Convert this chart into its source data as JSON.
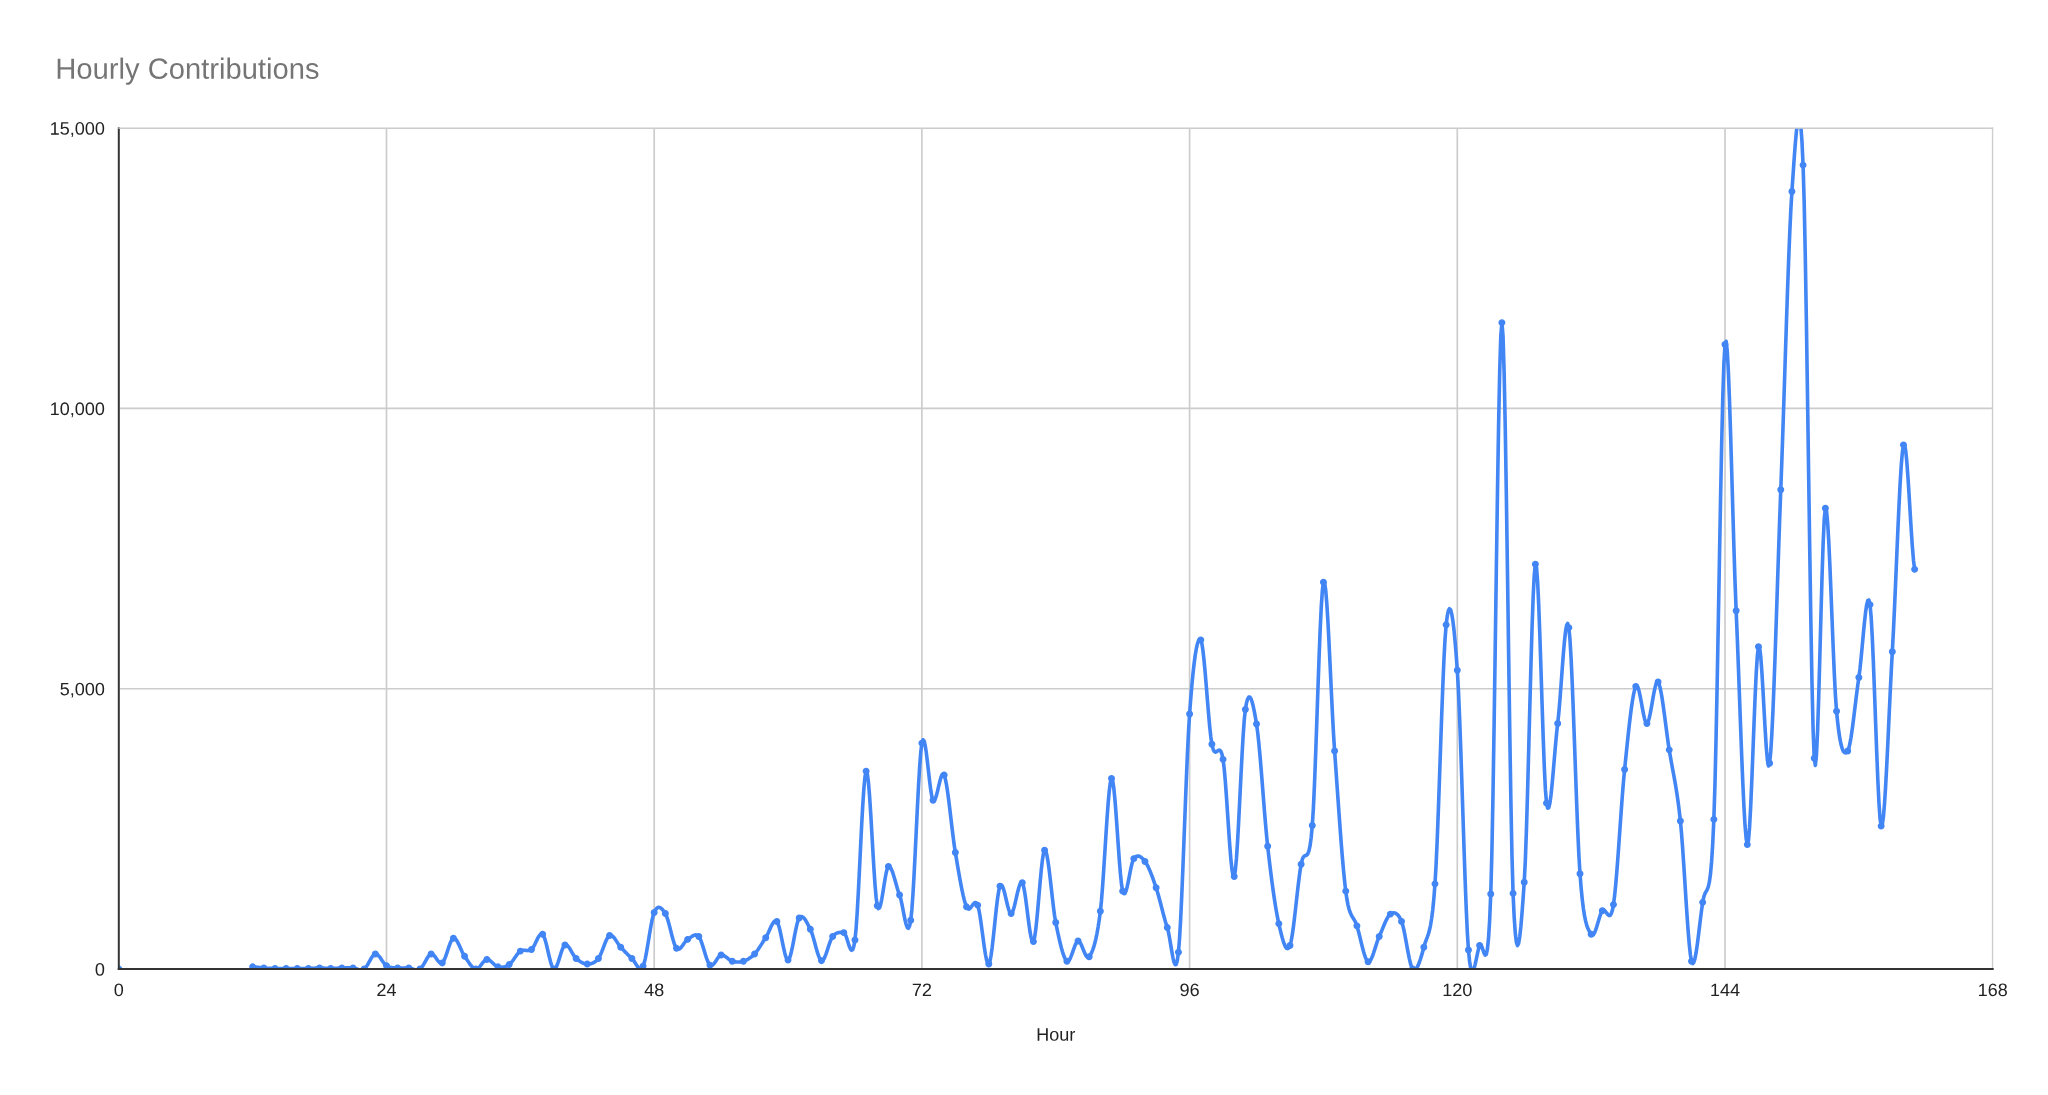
{
  "chart_data": {
    "type": "line",
    "title": "Hourly Contributions",
    "xlabel": "Hour",
    "x": [
      0,
      1,
      2,
      3,
      4,
      5,
      6,
      7,
      8,
      9,
      10,
      11,
      12,
      13,
      14,
      15,
      16,
      17,
      18,
      19,
      20,
      21,
      22,
      23,
      24,
      25,
      26,
      27,
      28,
      29,
      30,
      31,
      32,
      33,
      34,
      35,
      36,
      37,
      38,
      39,
      40,
      41,
      42,
      43,
      44,
      45,
      46,
      47,
      48,
      49,
      50,
      51,
      52,
      53,
      54,
      55,
      56,
      57,
      58,
      59,
      60,
      61,
      62,
      63,
      64,
      65,
      66,
      67,
      68,
      69,
      70,
      71,
      72,
      73,
      74,
      75,
      76,
      77,
      78,
      79,
      80,
      81,
      82,
      83,
      84,
      85,
      86,
      87,
      88,
      89,
      90,
      91,
      92,
      93,
      94,
      95,
      96,
      97,
      98,
      99,
      100,
      101,
      102,
      103,
      104,
      105,
      106,
      107,
      108,
      109,
      110,
      111,
      112,
      113,
      114,
      115,
      116,
      117,
      118,
      119,
      120,
      121,
      122,
      123,
      124,
      125,
      126,
      127,
      128,
      129,
      130,
      131,
      132,
      133,
      134,
      135,
      136,
      137,
      138,
      139,
      140,
      141,
      142,
      143,
      144,
      145,
      146,
      147,
      148,
      149,
      150,
      151,
      152,
      153,
      154,
      155,
      156,
      157,
      158,
      159,
      160,
      161
    ],
    "series": [
      {
        "color": "#4285f4",
        "values": [
          0,
          null,
          null,
          null,
          null,
          null,
          null,
          null,
          null,
          null,
          null,
          null,
          40,
          20,
          10,
          10,
          10,
          10,
          20,
          10,
          20,
          20,
          0,
          270,
          60,
          20,
          20,
          0,
          270,
          110,
          550,
          230,
          0,
          170,
          40,
          80,
          320,
          350,
          620,
          0,
          430,
          190,
          90,
          190,
          600,
          390,
          190,
          50,
          1010,
          990,
          370,
          530,
          580,
          70,
          250,
          140,
          140,
          270,
          560,
          850,
          160,
          910,
          710,
          150,
          580,
          650,
          520,
          3530,
          1130,
          1830,
          1320,
          870,
          4030,
          3010,
          3460,
          2080,
          1110,
          1140,
          90,
          1480,
          990,
          1540,
          490,
          2120,
          830,
          140,
          500,
          220,
          1030,
          3400,
          1390,
          1970,
          1920,
          1450,
          740,
          300,
          4550,
          5870,
          4010,
          3740,
          1650,
          4630,
          4370,
          2190,
          810,
          420,
          1870,
          2560,
          6900,
          3890,
          1390,
          770,
          130,
          580,
          980,
          850,
          0,
          390,
          1520,
          6140,
          5330,
          340,
          420,
          1340,
          11530,
          1350,
          1550,
          7220,
          2960,
          4380,
          6090,
          1700,
          620,
          1040,
          1150,
          3560,
          5040,
          4380,
          5120,
          3910,
          2640,
          140,
          1190,
          2670,
          11140,
          6390,
          2220,
          5750,
          3670,
          8550,
          13870,
          14340,
          3760,
          8220,
          4600,
          3890,
          5200,
          6500,
          2550,
          5660,
          9350,
          7130
        ]
      }
    ],
    "xlim": [
      0,
      168
    ],
    "xticks": [
      0,
      24,
      48,
      72,
      96,
      120,
      144,
      168
    ],
    "ylim": [
      0,
      15000
    ],
    "yticks": [
      {
        "value": 0,
        "label": "0"
      },
      {
        "value": 5000,
        "label": "5,000"
      },
      {
        "value": 10000,
        "label": "10,000"
      },
      {
        "value": 15000,
        "label": "15,000"
      }
    ],
    "grid": true,
    "marker": "circle",
    "line_style": "solid"
  }
}
